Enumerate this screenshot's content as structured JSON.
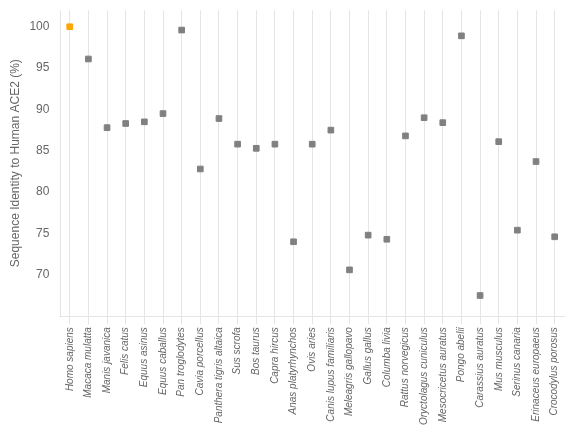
{
  "chart_data": {
    "type": "scatter",
    "categories": [
      "Homo sapiens",
      "Macaca mulatta",
      "Manis javanica",
      "Felis catus",
      "Equus asinus",
      "Equus caballus",
      "Pan troglodytes",
      "Cavia porcellus",
      "Panthera tigris altaica",
      "Sus scrofa",
      "Bos taurus",
      "Capra hircus",
      "Anas platyrhynchos",
      "Ovis aries",
      "Canis lupus familiaris",
      "Meleagris gallopavo",
      "Gallus gallus",
      "Columba livia",
      "Rattus norvegicus",
      "Oryctolagus cuniculus",
      "Mesocricetus auratus",
      "Pongo abelii",
      "Carassius auratus",
      "Mus musculus",
      "Serinus canaria",
      "Erinaceus europaeus",
      "Crocodylus porosus"
    ],
    "values": [
      100,
      96.1,
      87.8,
      88.3,
      88.5,
      89.5,
      99.6,
      82.8,
      88.9,
      85.8,
      85.3,
      85.8,
      74.0,
      85.8,
      87.5,
      70.6,
      74.8,
      74.3,
      86.8,
      89.0,
      88.4,
      98.9,
      67.5,
      86.1,
      75.4,
      83.7,
      74.6
    ],
    "colors": [
      "#FFA500",
      "#808080",
      "#808080",
      "#808080",
      "#808080",
      "#808080",
      "#808080",
      "#808080",
      "#808080",
      "#808080",
      "#808080",
      "#808080",
      "#808080",
      "#808080",
      "#808080",
      "#808080",
      "#808080",
      "#808080",
      "#808080",
      "#808080",
      "#808080",
      "#808080",
      "#808080",
      "#808080",
      "#808080",
      "#808080",
      "#808080"
    ],
    "marker": "square",
    "ylabel": "Sequence Identity to Human ACE2 (%)",
    "ylim": [
      65,
      102
    ],
    "yticks": [
      70,
      75,
      80,
      85,
      90,
      95,
      100
    ],
    "grid": "x"
  }
}
